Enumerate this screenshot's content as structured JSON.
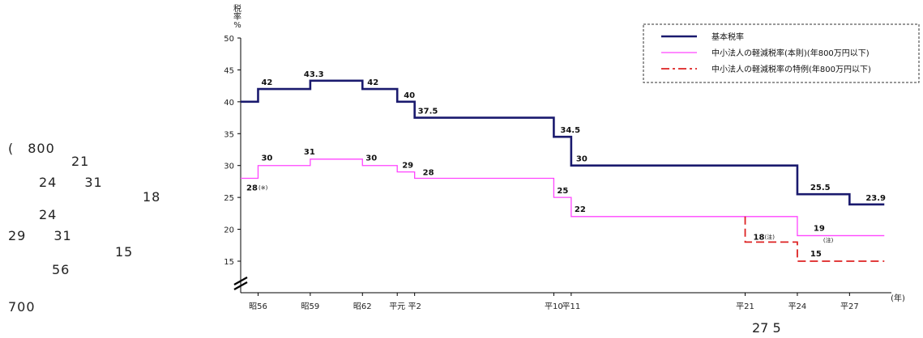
{
  "side_text": [
    "(　800",
    "21",
    "24　　31",
    "18",
    "24",
    "29　　31",
    "15",
    "56",
    "700"
  ],
  "footer_text": "27 5",
  "colors": {
    "basic": "#1a1a6e",
    "sme": "#ff44ff",
    "special": "#dd2222"
  },
  "chart_data": {
    "type": "line",
    "ylabel": "税\n率\n%",
    "xlabel": "(年)",
    "ylim": [
      15,
      50
    ],
    "yticks": [
      15,
      20,
      25,
      30,
      35,
      40,
      45,
      50
    ],
    "x_ticks": [
      {
        "label": "昭56",
        "x": 1981
      },
      {
        "label": "昭59",
        "x": 1984
      },
      {
        "label": "昭62",
        "x": 1987
      },
      {
        "label": "平元",
        "x": 1989
      },
      {
        "label": "平2",
        "x": 1990
      },
      {
        "label": "平10",
        "x": 1998
      },
      {
        "label": "平11",
        "x": 1999
      },
      {
        "label": "平21",
        "x": 2009
      },
      {
        "label": "平24",
        "x": 2012
      },
      {
        "label": "平27",
        "x": 2015
      }
    ],
    "xlim": [
      1980,
      2017.5
    ],
    "legend": {
      "placement": "top-right"
    },
    "series": [
      {
        "name": "基本税率",
        "style": "solid-thick",
        "points": [
          [
            1980,
            40
          ],
          [
            1981,
            42
          ],
          [
            1984,
            43.3
          ],
          [
            1987,
            42
          ],
          [
            1989,
            40
          ],
          [
            1990,
            37.5
          ],
          [
            1998,
            34.5
          ],
          [
            1999,
            30
          ],
          [
            2012,
            25.5
          ],
          [
            2015,
            23.9
          ],
          [
            2017,
            23.9
          ]
        ],
        "labels": [
          "42",
          "43.3",
          "42",
          "40",
          "37.5",
          "34.5",
          "30",
          "25.5",
          "23.9"
        ]
      },
      {
        "name": "中小法人の軽減税率(本則)(年800万円以下)",
        "style": "solid-thin",
        "points": [
          [
            1980,
            28
          ],
          [
            1981,
            30
          ],
          [
            1984,
            31
          ],
          [
            1987,
            30
          ],
          [
            1989,
            29
          ],
          [
            1990,
            28
          ],
          [
            1998,
            25
          ],
          [
            1999,
            22
          ],
          [
            2012,
            19
          ],
          [
            2017,
            19
          ]
        ],
        "labels": [
          "28",
          "30",
          "31",
          "30",
          "29",
          "28",
          "25",
          "22",
          "19"
        ]
      },
      {
        "name": "中小法人の軽減税率の特例(年800万円以下)",
        "style": "dashed",
        "points": [
          [
            2009,
            22
          ],
          [
            2009,
            18
          ],
          [
            2012,
            15
          ],
          [
            2017,
            15
          ]
        ],
        "labels": [
          "18",
          "15"
        ]
      }
    ],
    "annotations": [
      "(※)",
      "(注)",
      "(注)"
    ]
  }
}
